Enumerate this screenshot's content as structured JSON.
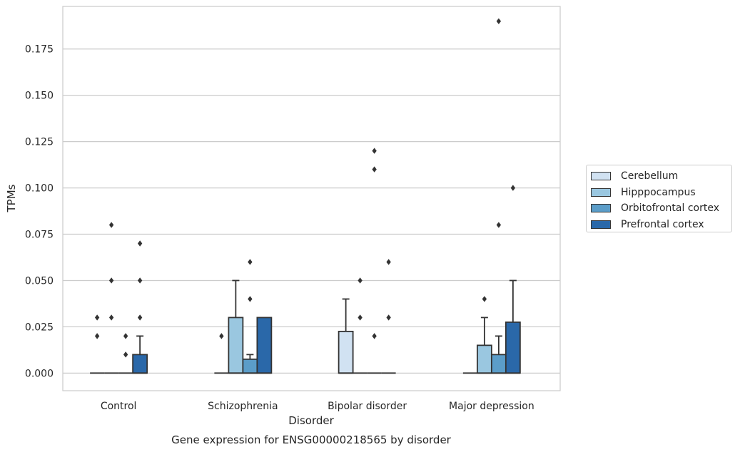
{
  "chart_data": {
    "type": "box",
    "title": "Gene expression for ENSG00000218565 by disorder",
    "xlabel": "Disorder",
    "ylabel": "TPMs",
    "ylim": [
      -0.0095,
      0.198
    ],
    "yticks": [
      "0.000",
      "0.025",
      "0.050",
      "0.075",
      "0.100",
      "0.125",
      "0.150",
      "0.175"
    ],
    "grid": true,
    "legend_position": "right",
    "categories": [
      "Control",
      "Schizophrenia",
      "Bipolar disorder",
      "Major depression"
    ],
    "series": [
      {
        "name": "Cerebellum",
        "color": "#d1e2f2",
        "boxes": [
          {
            "q1": 0,
            "median": 0,
            "q3": 0,
            "whisker_low": 0,
            "whisker_high": 0,
            "outliers": [
              0.02,
              0.03
            ]
          },
          {
            "q1": 0,
            "median": 0,
            "q3": 0,
            "whisker_low": 0,
            "whisker_high": 0,
            "outliers": [
              0.02
            ]
          },
          {
            "q1": 0,
            "median": 0,
            "q3": 0.0225,
            "whisker_low": 0,
            "whisker_high": 0.04,
            "outliers": []
          },
          {
            "q1": 0,
            "median": 0,
            "q3": 0,
            "whisker_low": 0,
            "whisker_high": 0,
            "outliers": []
          }
        ]
      },
      {
        "name": "Hipppocampus",
        "color": "#9ac7e0",
        "boxes": [
          {
            "q1": 0,
            "median": 0,
            "q3": 0,
            "whisker_low": 0,
            "whisker_high": 0,
            "outliers": [
              0.03,
              0.05,
              0.08
            ]
          },
          {
            "q1": 0,
            "median": 0,
            "q3": 0.03,
            "whisker_low": 0,
            "whisker_high": 0.05,
            "outliers": []
          },
          {
            "q1": 0,
            "median": 0,
            "q3": 0,
            "whisker_low": 0,
            "whisker_high": 0,
            "outliers": [
              0.03,
              0.05
            ]
          },
          {
            "q1": 0,
            "median": 0,
            "q3": 0.015,
            "whisker_low": 0,
            "whisker_high": 0.03,
            "outliers": [
              0.04
            ]
          }
        ]
      },
      {
        "name": "Orbitofrontal cortex",
        "color": "#5b9dc9",
        "boxes": [
          {
            "q1": 0,
            "median": 0,
            "q3": 0,
            "whisker_low": 0,
            "whisker_high": 0,
            "outliers": [
              0.01,
              0.02
            ]
          },
          {
            "q1": 0,
            "median": 0,
            "q3": 0.0075,
            "whisker_low": 0,
            "whisker_high": 0.01,
            "outliers": [
              0.04,
              0.06
            ]
          },
          {
            "q1": 0,
            "median": 0,
            "q3": 0,
            "whisker_low": 0,
            "whisker_high": 0,
            "outliers": [
              0.02,
              0.11,
              0.12
            ]
          },
          {
            "q1": 0,
            "median": 0,
            "q3": 0.01,
            "whisker_low": 0,
            "whisker_high": 0.02,
            "outliers": [
              0.08,
              0.19
            ]
          }
        ]
      },
      {
        "name": "Prefrontal cortex",
        "color": "#2a68a9",
        "boxes": [
          {
            "q1": 0,
            "median": 0,
            "q3": 0.01,
            "whisker_low": 0,
            "whisker_high": 0.02,
            "outliers": [
              0.03,
              0.05,
              0.07
            ]
          },
          {
            "q1": 0,
            "median": 0,
            "q3": 0.03,
            "whisker_low": 0,
            "whisker_high": 0.03,
            "outliers": []
          },
          {
            "q1": 0,
            "median": 0,
            "q3": 0,
            "whisker_low": 0,
            "whisker_high": 0,
            "outliers": [
              0.03,
              0.06
            ]
          },
          {
            "q1": 0,
            "median": 0,
            "q3": 0.0275,
            "whisker_low": 0,
            "whisker_high": 0.05,
            "outliers": [
              0.1
            ]
          }
        ]
      }
    ]
  }
}
